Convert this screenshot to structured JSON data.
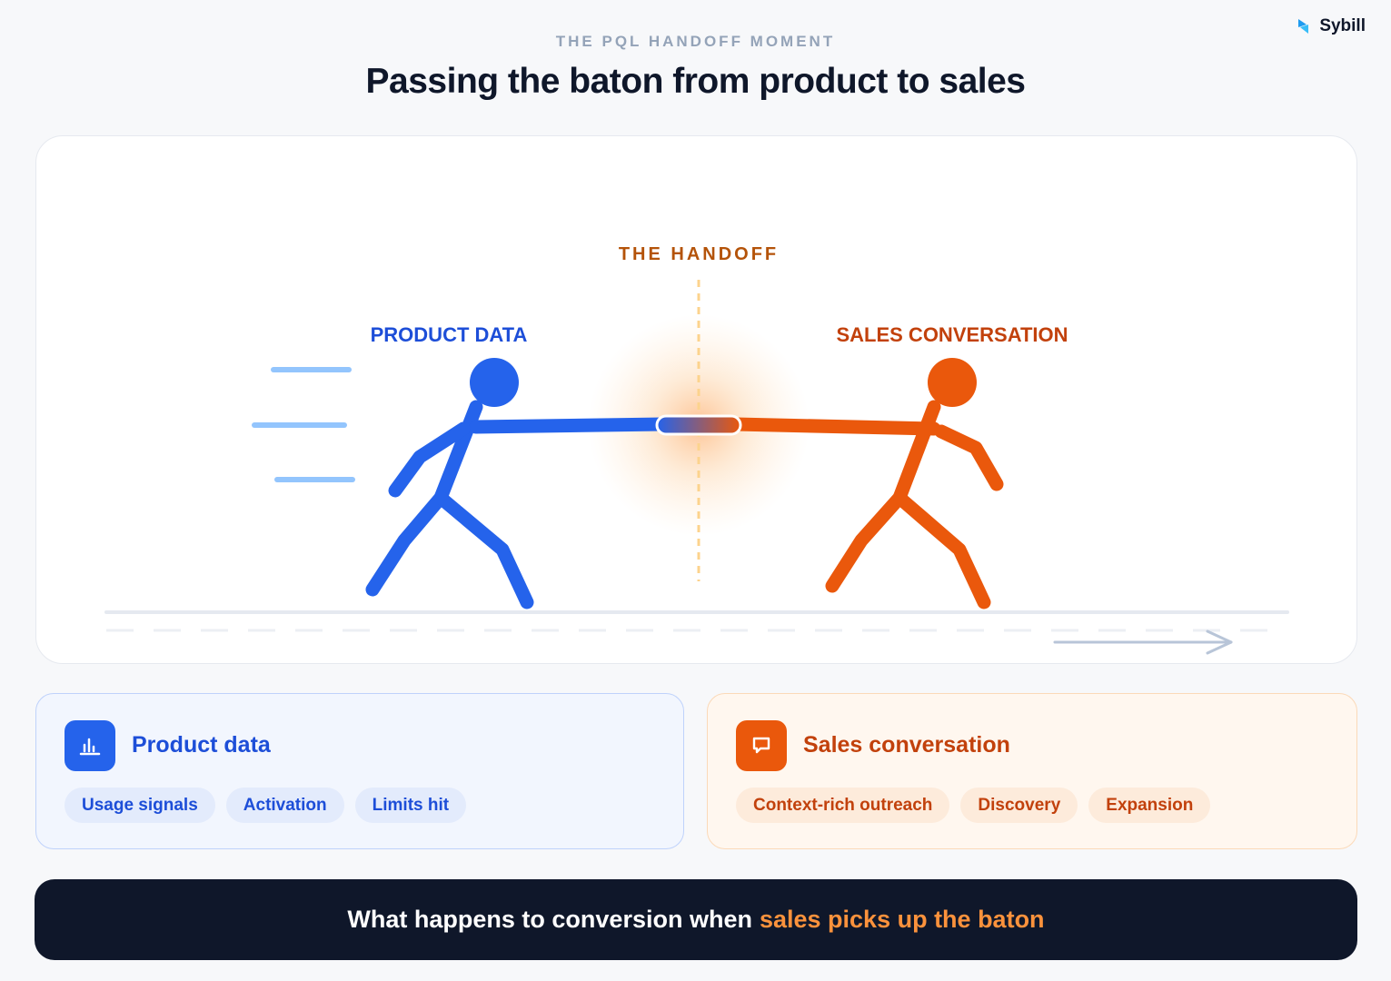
{
  "brand": {
    "name": "Sybill",
    "accent_color": "#1e9bf0"
  },
  "header": {
    "eyebrow": "THE PQL HANDOFF MOMENT",
    "title": "Passing the baton from product to sales"
  },
  "diagram": {
    "handoff_label": "THE HANDOFF",
    "left_label": "PRODUCT DATA",
    "right_label": "SALES CONVERSATION",
    "left_color": "#2563eb",
    "right_color": "#ea580c",
    "handoff_color": "#b45309"
  },
  "cards": {
    "product": {
      "icon": "bar-chart-icon",
      "title": "Product data",
      "chips": [
        "Usage signals",
        "Activation",
        "Limits hit"
      ]
    },
    "sales": {
      "icon": "chat-bubble-icon",
      "title": "Sales conversation",
      "chips": [
        "Context-rich outreach",
        "Discovery",
        "Expansion"
      ]
    }
  },
  "banner": {
    "lead": "What happens to conversion when",
    "accent": "sales picks up the baton"
  }
}
